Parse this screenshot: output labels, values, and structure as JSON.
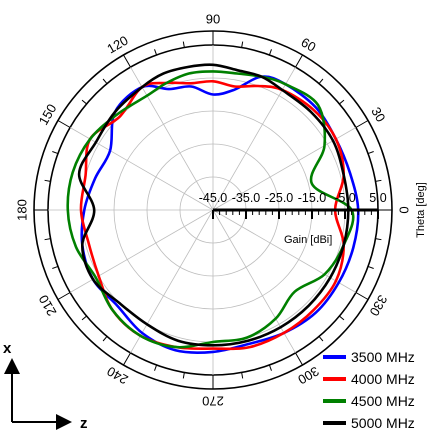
{
  "chart_data": {
    "type": "polar-line",
    "angle_unit_label": "Theta [deg]",
    "radial_label": "Gain [dBi]",
    "radial_range": [
      -45,
      5
    ],
    "radial_ticks": [
      "-45.0",
      "-35.0",
      "-25.0",
      "-15.0",
      "-5.0",
      "5.0"
    ],
    "angle_ticks": [
      {
        "deg": 0,
        "label": "0"
      },
      {
        "deg": 30,
        "label": "30"
      },
      {
        "deg": 60,
        "label": "60"
      },
      {
        "deg": 90,
        "label": "90"
      },
      {
        "deg": 120,
        "label": "120"
      },
      {
        "deg": 150,
        "label": "150"
      },
      {
        "deg": 180,
        "label": "180"
      },
      {
        "deg": 210,
        "label": "210"
      },
      {
        "deg": 240,
        "label": "240"
      },
      {
        "deg": 270,
        "label": "270"
      },
      {
        "deg": 300,
        "label": "300"
      },
      {
        "deg": 330,
        "label": "330"
      }
    ],
    "grid": true,
    "legend_position": "bottom-right",
    "series": [
      {
        "name": "3500 MHz",
        "color": "#0000ff",
        "theta": [
          0,
          15,
          30,
          45,
          60,
          70,
          80,
          90,
          100,
          110,
          120,
          135,
          150,
          165,
          180,
          195,
          210,
          225,
          240,
          255,
          270,
          285,
          300,
          315,
          330,
          345,
          360
        ],
        "gain": [
          -1,
          -2,
          -2,
          -1,
          -1,
          -2,
          -8,
          -10,
          -7,
          -6,
          -2,
          -3,
          -9,
          -8,
          -6,
          -4,
          -3,
          -4,
          -2,
          -1,
          -2,
          -3,
          -2,
          -1,
          -1,
          -1,
          -1
        ]
      },
      {
        "name": "4000 MHz",
        "color": "#ff0000",
        "theta": [
          0,
          15,
          30,
          45,
          60,
          70,
          80,
          90,
          100,
          110,
          120,
          135,
          150,
          165,
          180,
          195,
          210,
          225,
          240,
          255,
          270,
          285,
          300,
          315,
          330,
          345,
          360
        ],
        "gain": [
          -8,
          -4,
          -2,
          -2,
          -3,
          -5,
          -7,
          -6,
          -6,
          -4,
          -2,
          -5,
          -2,
          -5,
          -5,
          -6,
          -5,
          -2,
          -1,
          -2,
          -3,
          -2,
          -2,
          -2,
          -2,
          -4,
          -8
        ]
      },
      {
        "name": "4500 MHz",
        "color": "#008000",
        "theta": [
          0,
          15,
          30,
          45,
          60,
          70,
          80,
          90,
          100,
          110,
          120,
          135,
          150,
          165,
          180,
          195,
          210,
          225,
          240,
          255,
          270,
          285,
          300,
          315,
          330,
          345,
          360
        ],
        "gain": [
          -3,
          -14,
          -6,
          0,
          -1,
          -2,
          -3,
          -3,
          -3,
          -4,
          -5,
          -4,
          -2,
          -1,
          -1,
          -2,
          -4,
          -2,
          -1,
          -2,
          -5,
          -5,
          -7,
          -10,
          -6,
          -4,
          -3
        ]
      },
      {
        "name": "5000 MHz",
        "color": "#000000",
        "theta": [
          0,
          15,
          30,
          45,
          60,
          70,
          80,
          90,
          100,
          110,
          120,
          135,
          150,
          165,
          180,
          195,
          210,
          225,
          240,
          255,
          270,
          285,
          300,
          315,
          330,
          345,
          360
        ],
        "gain": [
          -4,
          -4,
          -3,
          -3,
          -3,
          -2,
          -2,
          -1,
          -1,
          -1,
          -2,
          -3,
          -4,
          -3,
          -9,
          -4,
          -3,
          -5,
          -5,
          -4,
          -4,
          -4,
          -4,
          -4,
          -4,
          -4,
          -4
        ]
      }
    ]
  },
  "orientation": {
    "vertical_axis": "x",
    "horizontal_axis": "z"
  }
}
